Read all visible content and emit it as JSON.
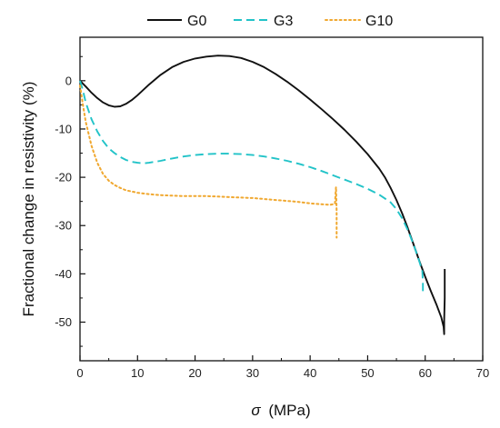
{
  "chart_data": {
    "type": "line",
    "xlabel_symbol": "σ",
    "xlabel_unit": "(MPa)",
    "ylabel": "Fractional change in resistivity (%)",
    "xlim": [
      0,
      70
    ],
    "ylim": [
      -58,
      9
    ],
    "x_ticks": [
      0,
      10,
      20,
      30,
      40,
      50,
      60,
      70
    ],
    "y_ticks": [
      0,
      -10,
      -20,
      -30,
      -40,
      -50
    ],
    "grid": false,
    "legend_position": "top-center",
    "series": [
      {
        "name": "G0",
        "color": "#111111",
        "dash": "solid",
        "points": [
          [
            0,
            0
          ],
          [
            1,
            -1.2
          ],
          [
            2,
            -2.5
          ],
          [
            3,
            -3.6
          ],
          [
            4,
            -4.5
          ],
          [
            5,
            -5.1
          ],
          [
            6,
            -5.4
          ],
          [
            7,
            -5.3
          ],
          [
            8,
            -4.8
          ],
          [
            9,
            -4.0
          ],
          [
            10,
            -3.0
          ],
          [
            12,
            -0.8
          ],
          [
            14,
            1.2
          ],
          [
            16,
            2.8
          ],
          [
            18,
            3.9
          ],
          [
            20,
            4.6
          ],
          [
            22,
            5.0
          ],
          [
            24,
            5.2
          ],
          [
            26,
            5.1
          ],
          [
            28,
            4.7
          ],
          [
            30,
            3.9
          ],
          [
            32,
            2.8
          ],
          [
            34,
            1.4
          ],
          [
            36,
            -0.2
          ],
          [
            38,
            -2.0
          ],
          [
            40,
            -3.9
          ],
          [
            42,
            -5.9
          ],
          [
            44,
            -8.0
          ],
          [
            46,
            -10.2
          ],
          [
            48,
            -12.6
          ],
          [
            50,
            -15.2
          ],
          [
            52,
            -18.2
          ],
          [
            53,
            -20.0
          ],
          [
            54,
            -22.2
          ],
          [
            55,
            -24.7
          ],
          [
            56,
            -27.5
          ],
          [
            57,
            -30.6
          ],
          [
            58,
            -34.0
          ],
          [
            59,
            -37.4
          ],
          [
            60,
            -40.6
          ],
          [
            61,
            -43.6
          ],
          [
            62,
            -46.5
          ],
          [
            62.8,
            -49.0
          ],
          [
            63.2,
            -51.0
          ],
          [
            63.3,
            -52.5
          ],
          [
            63.3,
            -49.5
          ],
          [
            63.4,
            -45.0
          ],
          [
            63.4,
            -39.0
          ]
        ]
      },
      {
        "name": "G3",
        "color": "#22c3c8",
        "dash": "dashed",
        "points": [
          [
            0,
            0
          ],
          [
            0.5,
            -2.0
          ],
          [
            1,
            -4.5
          ],
          [
            2,
            -8.0
          ],
          [
            3,
            -10.5
          ],
          [
            4,
            -12.5
          ],
          [
            5,
            -14.0
          ],
          [
            6,
            -15.0
          ],
          [
            7,
            -15.8
          ],
          [
            8,
            -16.4
          ],
          [
            9,
            -16.8
          ],
          [
            10,
            -17.0
          ],
          [
            11,
            -17.1
          ],
          [
            12,
            -17.0
          ],
          [
            14,
            -16.6
          ],
          [
            16,
            -16.1
          ],
          [
            18,
            -15.7
          ],
          [
            20,
            -15.4
          ],
          [
            22,
            -15.2
          ],
          [
            24,
            -15.1
          ],
          [
            26,
            -15.1
          ],
          [
            28,
            -15.2
          ],
          [
            30,
            -15.4
          ],
          [
            32,
            -15.7
          ],
          [
            34,
            -16.1
          ],
          [
            36,
            -16.6
          ],
          [
            38,
            -17.2
          ],
          [
            40,
            -17.9
          ],
          [
            42,
            -18.7
          ],
          [
            44,
            -19.6
          ],
          [
            46,
            -20.5
          ],
          [
            48,
            -21.4
          ],
          [
            50,
            -22.4
          ],
          [
            52,
            -23.6
          ],
          [
            54,
            -25.2
          ],
          [
            55,
            -26.6
          ],
          [
            56,
            -28.5
          ],
          [
            57,
            -31.0
          ],
          [
            58,
            -34.0
          ],
          [
            59,
            -37.5
          ],
          [
            59.5,
            -39.5
          ],
          [
            59.6,
            -42.0
          ],
          [
            59.6,
            -44.5
          ]
        ]
      },
      {
        "name": "G10",
        "color": "#f0a830",
        "dash": "dotted",
        "points": [
          [
            0,
            -1.0
          ],
          [
            0.5,
            -5.0
          ],
          [
            1,
            -8.5
          ],
          [
            2,
            -13.5
          ],
          [
            3,
            -17.0
          ],
          [
            4,
            -19.3
          ],
          [
            5,
            -20.7
          ],
          [
            6,
            -21.6
          ],
          [
            7,
            -22.2
          ],
          [
            8,
            -22.7
          ],
          [
            10,
            -23.2
          ],
          [
            12,
            -23.5
          ],
          [
            14,
            -23.7
          ],
          [
            16,
            -23.8
          ],
          [
            18,
            -23.9
          ],
          [
            20,
            -23.9
          ],
          [
            22,
            -23.9
          ],
          [
            24,
            -24.0
          ],
          [
            26,
            -24.1
          ],
          [
            28,
            -24.2
          ],
          [
            30,
            -24.3
          ],
          [
            32,
            -24.5
          ],
          [
            34,
            -24.7
          ],
          [
            36,
            -24.9
          ],
          [
            38,
            -25.1
          ],
          [
            40,
            -25.4
          ],
          [
            42,
            -25.6
          ],
          [
            43.5,
            -25.7
          ],
          [
            44.3,
            -25.5
          ],
          [
            44.5,
            -22.0
          ],
          [
            44.6,
            -27.0
          ],
          [
            44.6,
            -32.5
          ]
        ]
      }
    ]
  }
}
